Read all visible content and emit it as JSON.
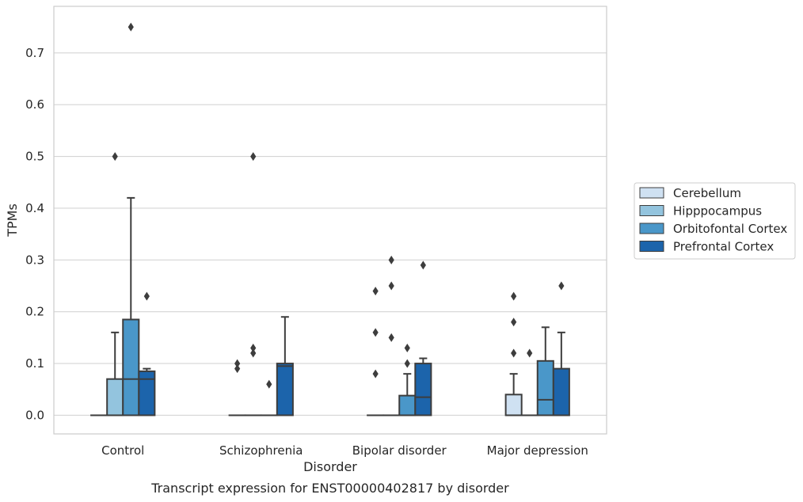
{
  "chart_data": {
    "type": "boxplot",
    "xlabel": "Disorder",
    "ylabel": "TPMs",
    "caption": "Transcript expression for ENST00000402817 by disorder",
    "ylim": [
      -0.036,
      0.79
    ],
    "yticks": [
      0.0,
      0.1,
      0.2,
      0.3,
      0.4,
      0.5,
      0.6,
      0.7
    ],
    "ytick_labels": [
      "0.0",
      "0.1",
      "0.2",
      "0.3",
      "0.4",
      "0.5",
      "0.6",
      "0.7"
    ],
    "grid": "horizontal",
    "legend_position": "right",
    "categories": [
      "Control",
      "Schizophrenia",
      "Bipolar disorder",
      "Major depression"
    ],
    "series": [
      {
        "name": "Cerebellum",
        "color": "#cfe1f2",
        "boxes": [
          {
            "q1": 0.0,
            "median": 0.0,
            "q3": 0.0,
            "whislo": 0.0,
            "whishi": 0.0,
            "fliers": []
          },
          {
            "q1": 0.0,
            "median": 0.0,
            "q3": 0.0,
            "whislo": 0.0,
            "whishi": 0.0,
            "fliers": [
              0.09,
              0.1
            ]
          },
          {
            "q1": 0.0,
            "median": 0.0,
            "q3": 0.0,
            "whislo": 0.0,
            "whishi": 0.0,
            "fliers": [
              0.08,
              0.16,
              0.24
            ]
          },
          {
            "q1": 0.0,
            "median": 0.0,
            "q3": 0.04,
            "whislo": 0.0,
            "whishi": 0.08,
            "fliers": [
              0.12,
              0.18,
              0.23
            ]
          }
        ]
      },
      {
        "name": "Hipppocampus",
        "color": "#93c4de",
        "boxes": [
          {
            "q1": 0.0,
            "median": 0.0,
            "q3": 0.07,
            "whislo": 0.0,
            "whishi": 0.16,
            "fliers": [
              0.5
            ]
          },
          {
            "q1": 0.0,
            "median": 0.0,
            "q3": 0.0,
            "whislo": 0.0,
            "whishi": 0.0,
            "fliers": [
              0.12,
              0.13,
              0.5
            ]
          },
          {
            "q1": 0.0,
            "median": 0.0,
            "q3": 0.0,
            "whislo": 0.0,
            "whishi": 0.0,
            "fliers": [
              0.15,
              0.25,
              0.3
            ]
          },
          {
            "q1": 0.0,
            "median": 0.0,
            "q3": 0.0,
            "whislo": 0.0,
            "whishi": 0.0,
            "fliers": [
              0.12
            ]
          }
        ]
      },
      {
        "name": "Orbitofontal Cortex",
        "color": "#4a97c9",
        "boxes": [
          {
            "q1": 0.0,
            "median": 0.07,
            "q3": 0.185,
            "whislo": 0.0,
            "whishi": 0.42,
            "fliers": [
              0.75
            ]
          },
          {
            "q1": 0.0,
            "median": 0.0,
            "q3": 0.0,
            "whislo": 0.0,
            "whishi": 0.0,
            "fliers": [
              0.06
            ]
          },
          {
            "q1": 0.0,
            "median": 0.0,
            "q3": 0.038,
            "whislo": 0.0,
            "whishi": 0.08,
            "fliers": [
              0.1,
              0.13
            ]
          },
          {
            "q1": 0.0,
            "median": 0.03,
            "q3": 0.105,
            "whislo": 0.0,
            "whishi": 0.17,
            "fliers": []
          }
        ]
      },
      {
        "name": "Prefrontal Cortex",
        "color": "#1c64ab",
        "boxes": [
          {
            "q1": 0.0,
            "median": 0.07,
            "q3": 0.085,
            "whislo": 0.0,
            "whishi": 0.09,
            "fliers": [
              0.23
            ]
          },
          {
            "q1": 0.0,
            "median": 0.095,
            "q3": 0.1,
            "whislo": 0.0,
            "whishi": 0.19,
            "fliers": []
          },
          {
            "q1": 0.0,
            "median": 0.035,
            "q3": 0.1,
            "whislo": 0.0,
            "whishi": 0.11,
            "fliers": [
              0.29
            ]
          },
          {
            "q1": 0.0,
            "median": 0.0,
            "q3": 0.09,
            "whislo": 0.0,
            "whishi": 0.16,
            "fliers": [
              0.25
            ]
          }
        ]
      }
    ]
  }
}
